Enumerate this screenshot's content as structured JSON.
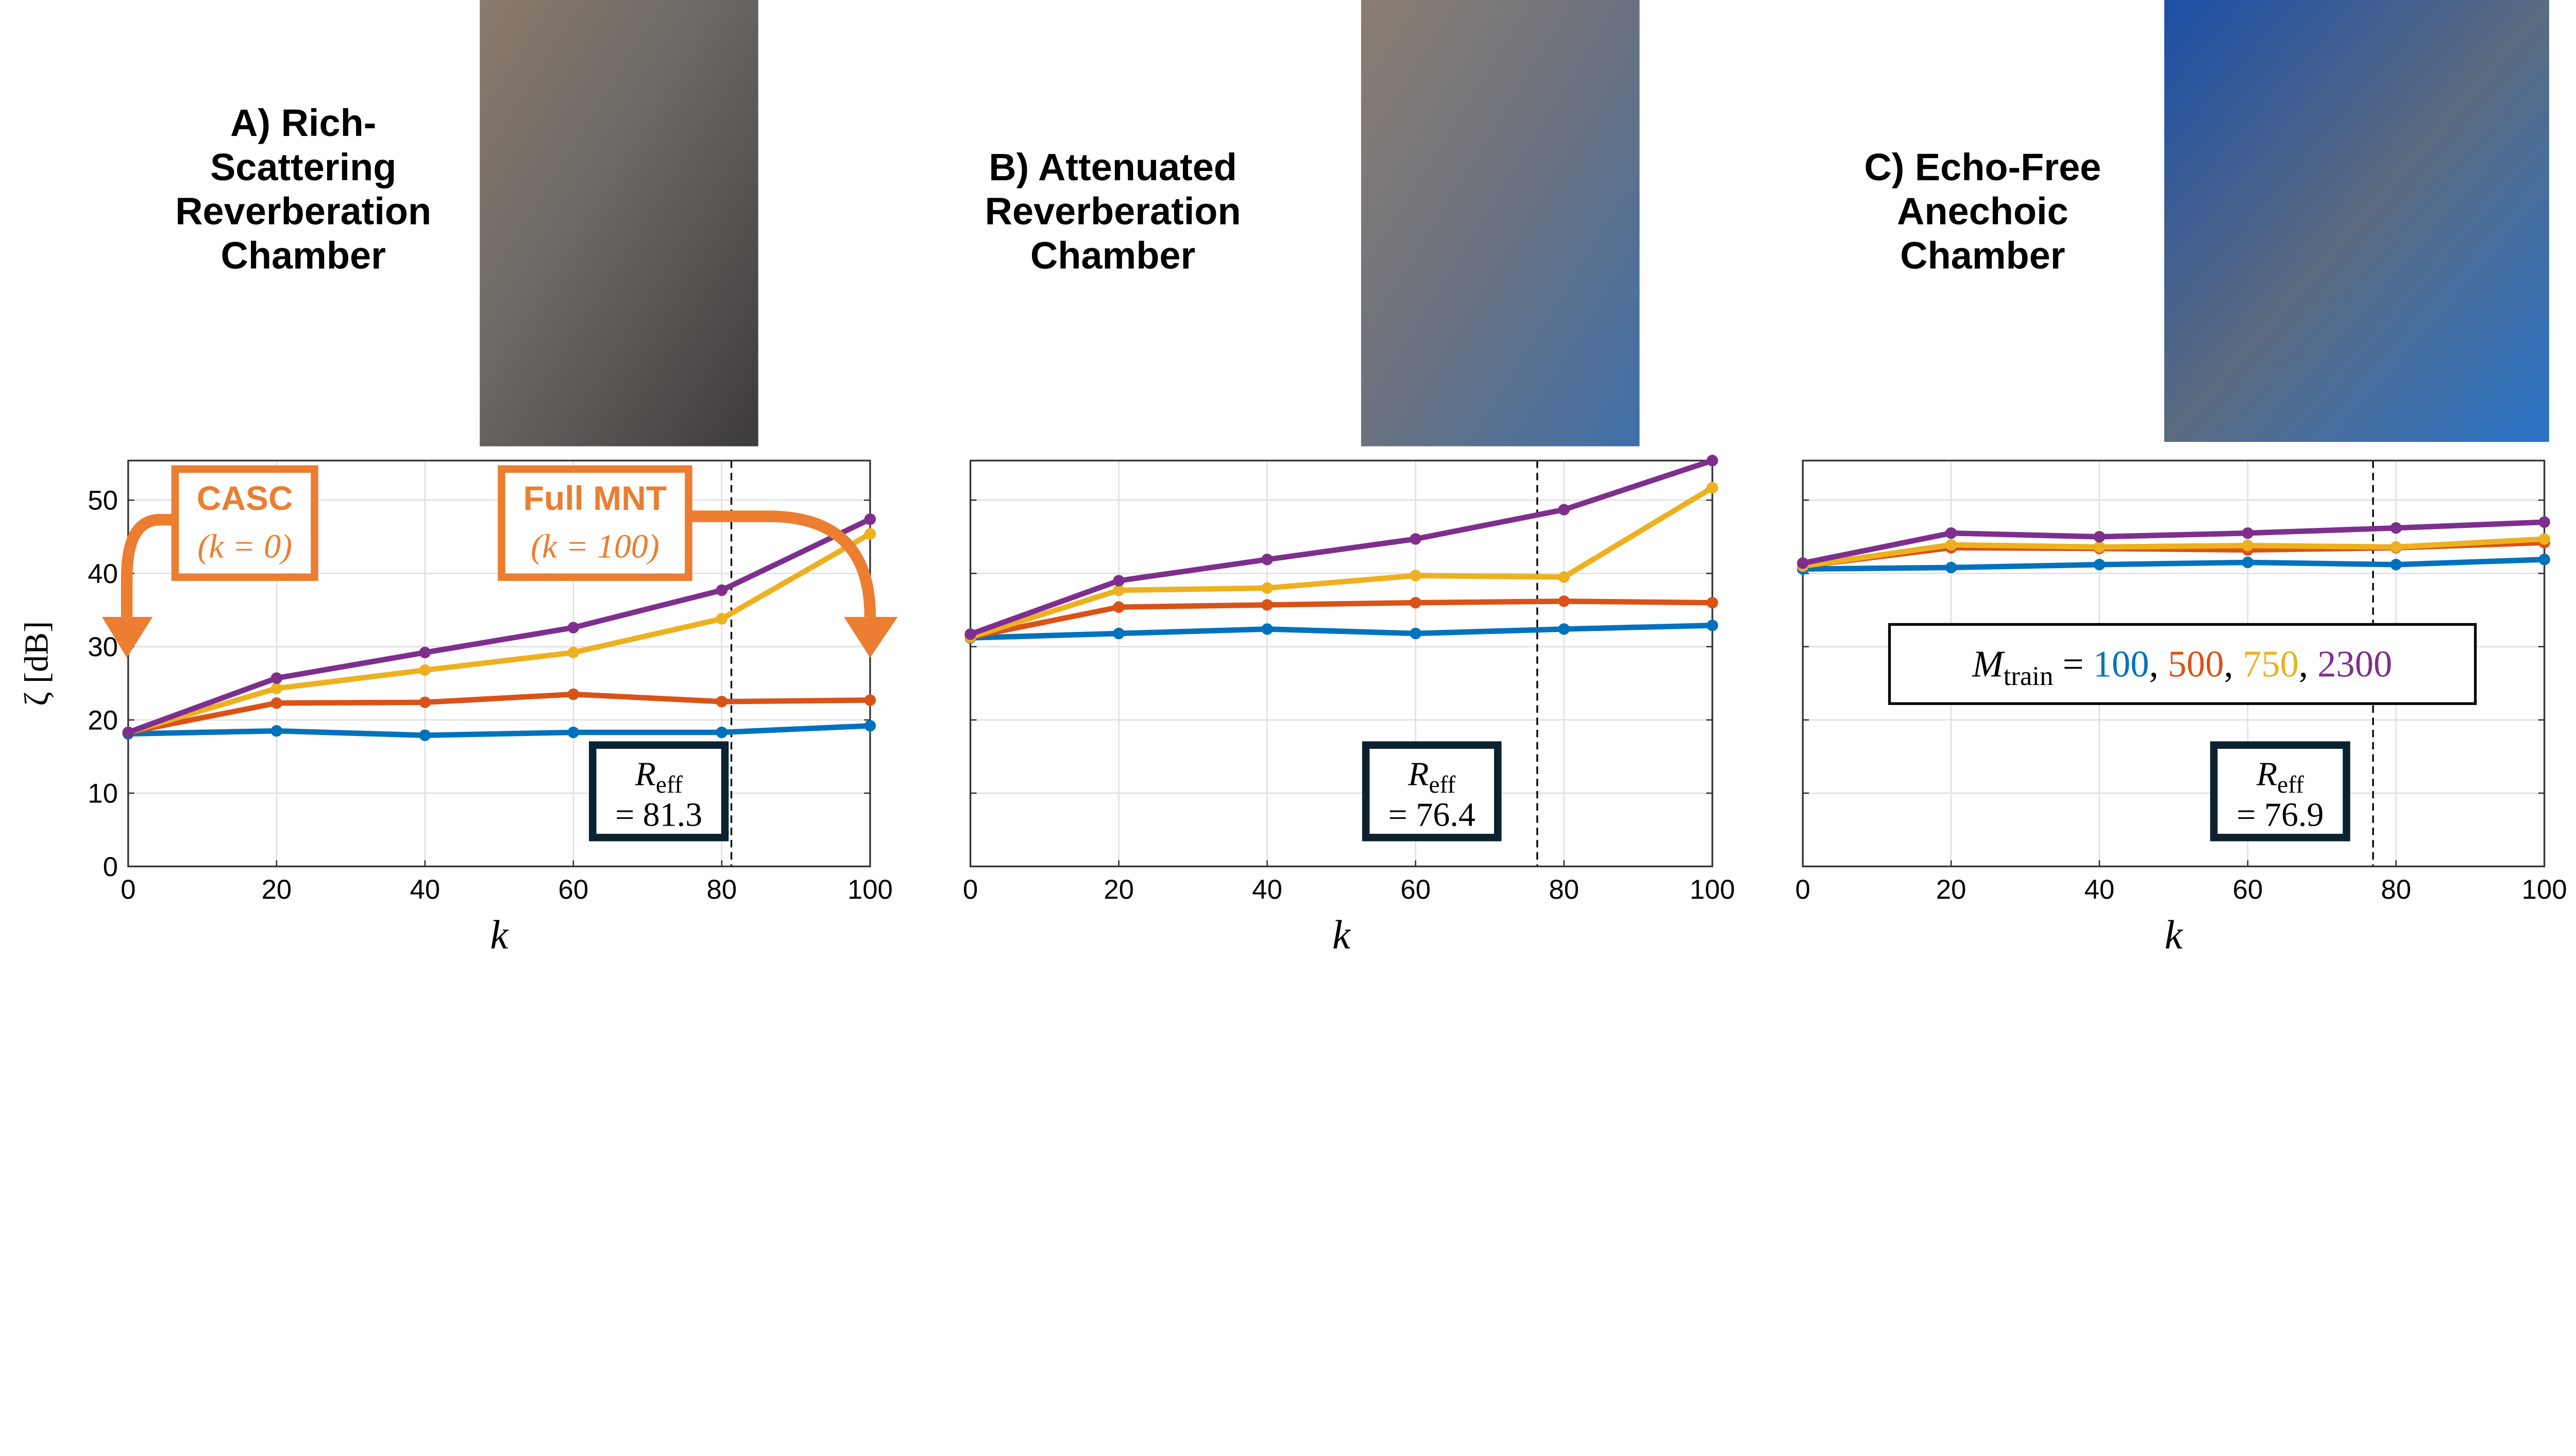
{
  "panels": [
    {
      "title_lines": [
        "A) Rich-",
        "Scattering",
        "Reverberation",
        "Chamber"
      ]
    },
    {
      "title_lines": [
        "B) Attenuated",
        "Reverberation",
        "Chamber"
      ]
    },
    {
      "title_lines": [
        "C) Echo-Free",
        "Anechoic",
        "Chamber"
      ]
    }
  ],
  "annotations": {
    "casc": {
      "label": "CASC",
      "sub": "(k = 0)"
    },
    "full_mnt": {
      "label": "Full MNT",
      "sub": "(k = 100)"
    },
    "color": "#ED7D31"
  },
  "legend": {
    "prefix": "M",
    "prefix_sub": "train",
    "eq": " = ",
    "entries": [
      "100",
      "500",
      "750",
      "2300"
    ]
  },
  "colors": [
    "#0072BD",
    "#D95319",
    "#EDB120",
    "#7E2F8E"
  ],
  "chart_data": [
    {
      "type": "line",
      "x": [
        0,
        20,
        40,
        60,
        80,
        100
      ],
      "xlabel": "k",
      "ylabel": "ζ [dB]",
      "xlim": [
        0,
        100
      ],
      "ylim": [
        0,
        55.4
      ],
      "xticks": [
        "0",
        "20",
        "40",
        "60",
        "80",
        "100"
      ],
      "yticks": [
        "0",
        "10",
        "20",
        "30",
        "40",
        "50"
      ],
      "grid": true,
      "reff": {
        "label": "R",
        "sub": "eff",
        "value_text": "= 81.3",
        "value": 81.3
      },
      "series": [
        {
          "name": "100",
          "values": [
            18.1,
            18.5,
            17.9,
            18.3,
            18.3,
            19.2
          ]
        },
        {
          "name": "500",
          "values": [
            18.3,
            22.3,
            22.4,
            23.5,
            22.5,
            22.7
          ]
        },
        {
          "name": "750",
          "values": [
            18.3,
            24.3,
            26.8,
            29.2,
            33.8,
            45.4
          ]
        },
        {
          "name": "2300",
          "values": [
            18.3,
            25.7,
            29.2,
            32.6,
            37.7,
            47.4
          ]
        }
      ]
    },
    {
      "type": "line",
      "x": [
        0,
        20,
        40,
        60,
        80,
        100
      ],
      "xlabel": "k",
      "xlim": [
        0,
        100
      ],
      "ylim": [
        0,
        55.4
      ],
      "xticks": [
        "0",
        "20",
        "40",
        "60",
        "80",
        "100"
      ],
      "grid": true,
      "reff": {
        "label": "R",
        "sub": "eff",
        "value_text": "= 76.4",
        "value": 76.4
      },
      "series": [
        {
          "name": "100",
          "values": [
            31.2,
            31.8,
            32.4,
            31.8,
            32.4,
            32.9
          ]
        },
        {
          "name": "500",
          "values": [
            31.3,
            35.4,
            35.7,
            36.0,
            36.2,
            36.0
          ]
        },
        {
          "name": "750",
          "values": [
            31.3,
            37.7,
            38.0,
            39.7,
            39.5,
            51.7
          ]
        },
        {
          "name": "2300",
          "values": [
            31.7,
            39.0,
            41.9,
            44.7,
            48.7,
            55.4
          ]
        }
      ]
    },
    {
      "type": "line",
      "x": [
        0,
        20,
        40,
        60,
        80,
        100
      ],
      "xlabel": "k",
      "xlim": [
        0,
        100
      ],
      "ylim": [
        0,
        55.4
      ],
      "xticks": [
        "0",
        "20",
        "40",
        "60",
        "80",
        "100"
      ],
      "grid": true,
      "reff": {
        "label": "R",
        "sub": "eff",
        "value_text": "= 76.9",
        "value": 76.9
      },
      "series": [
        {
          "name": "100",
          "values": [
            40.6,
            40.8,
            41.2,
            41.5,
            41.2,
            41.9
          ]
        },
        {
          "name": "500",
          "values": [
            41.0,
            43.5,
            43.4,
            43.2,
            43.5,
            44.2
          ]
        },
        {
          "name": "750",
          "values": [
            41.0,
            43.9,
            43.6,
            43.8,
            43.6,
            44.7
          ]
        },
        {
          "name": "2300",
          "values": [
            41.4,
            45.5,
            45.0,
            45.5,
            46.2,
            47.0
          ]
        }
      ]
    }
  ]
}
